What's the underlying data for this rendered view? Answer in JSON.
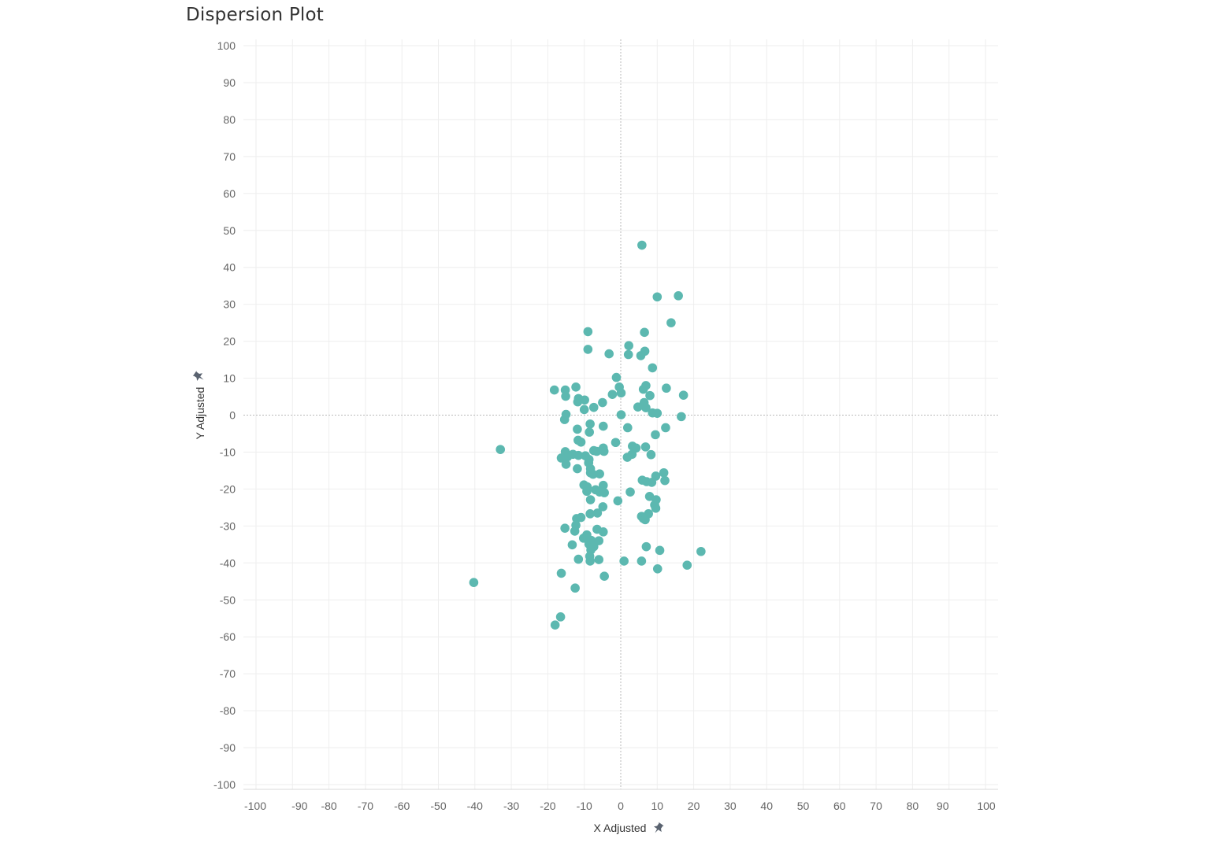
{
  "chart_data": {
    "type": "scatter",
    "title": "Dispersion Plot",
    "xlabel": "X Adjusted",
    "ylabel": "Y Adjusted",
    "xlim": [
      -100,
      100
    ],
    "ylim": [
      -100,
      100
    ],
    "x_ticks": [
      -100,
      -90,
      -80,
      -70,
      -60,
      -50,
      -40,
      -30,
      -20,
      -10,
      0,
      10,
      20,
      30,
      40,
      50,
      60,
      70,
      80,
      90,
      100
    ],
    "y_ticks": [
      100,
      90,
      80,
      70,
      60,
      50,
      40,
      30,
      20,
      10,
      0,
      -10,
      -20,
      -30,
      -40,
      -50,
      -60,
      -70,
      -80,
      -90,
      -100
    ],
    "grid": true,
    "zero_lines": true,
    "marker_color": "#5cb8b0",
    "axis_pin_icons": [
      "pin-icon",
      "pin-icon"
    ],
    "points": [
      {
        "x": 5.8,
        "y": 46
      },
      {
        "x": 10,
        "y": 32
      },
      {
        "x": 15.8,
        "y": 32.3
      },
      {
        "x": 13.8,
        "y": 25
      },
      {
        "x": -9,
        "y": 22.6
      },
      {
        "x": 6.5,
        "y": 22.4
      },
      {
        "x": -9,
        "y": 17.8
      },
      {
        "x": 2.2,
        "y": 18.8
      },
      {
        "x": 6.6,
        "y": 17.3
      },
      {
        "x": -3.2,
        "y": 16.6
      },
      {
        "x": 2.1,
        "y": 16.4
      },
      {
        "x": 5.5,
        "y": 16.1
      },
      {
        "x": 8.7,
        "y": 12.8
      },
      {
        "x": -1.2,
        "y": 10.2
      },
      {
        "x": 6.9,
        "y": 8
      },
      {
        "x": 12.5,
        "y": 7.3
      },
      {
        "x": -18.2,
        "y": 6.8
      },
      {
        "x": -15.2,
        "y": 6.8
      },
      {
        "x": -12.3,
        "y": 7.6
      },
      {
        "x": -0.4,
        "y": 7.6
      },
      {
        "x": 6.2,
        "y": 7
      },
      {
        "x": 0.1,
        "y": 6
      },
      {
        "x": -2.3,
        "y": 5.6
      },
      {
        "x": 17.2,
        "y": 5.4
      },
      {
        "x": 8,
        "y": 5.3
      },
      {
        "x": -15.1,
        "y": 5.1
      },
      {
        "x": -11.6,
        "y": 4.5
      },
      {
        "x": -9.9,
        "y": 4.1
      },
      {
        "x": -11.8,
        "y": 3.6
      },
      {
        "x": -5,
        "y": 3.4
      },
      {
        "x": 6.4,
        "y": 3.4
      },
      {
        "x": 4.7,
        "y": 2.2
      },
      {
        "x": -7.4,
        "y": 2.1
      },
      {
        "x": 6.9,
        "y": 2
      },
      {
        "x": -10,
        "y": 1.5
      },
      {
        "x": 8.7,
        "y": 0.6
      },
      {
        "x": 10,
        "y": 0.5
      },
      {
        "x": 0.1,
        "y": 0.1
      },
      {
        "x": -15,
        "y": 0.2
      },
      {
        "x": 16.6,
        "y": -0.4
      },
      {
        "x": -15.4,
        "y": -1.2
      },
      {
        "x": -8.4,
        "y": -2.4
      },
      {
        "x": -4.8,
        "y": -3
      },
      {
        "x": 1.9,
        "y": -3.4
      },
      {
        "x": 12.3,
        "y": -3.4
      },
      {
        "x": -11.9,
        "y": -3.8
      },
      {
        "x": -8.6,
        "y": -4.6
      },
      {
        "x": 9.5,
        "y": -5.3
      },
      {
        "x": -11.7,
        "y": -6.8
      },
      {
        "x": -10.9,
        "y": -7.3
      },
      {
        "x": -1.4,
        "y": -7.4
      },
      {
        "x": 3.2,
        "y": -8.4
      },
      {
        "x": 6.8,
        "y": -8.6
      },
      {
        "x": 4.2,
        "y": -8.9
      },
      {
        "x": -4.8,
        "y": -8.9
      },
      {
        "x": -33,
        "y": -9.3
      },
      {
        "x": -7.4,
        "y": -9.6
      },
      {
        "x": -15.2,
        "y": -9.9
      },
      {
        "x": -4.6,
        "y": -9.8
      },
      {
        "x": -6.6,
        "y": -9.8
      },
      {
        "x": -13.1,
        "y": -10.6
      },
      {
        "x": 3.1,
        "y": -10.6
      },
      {
        "x": 8.3,
        "y": -10.7
      },
      {
        "x": -11.6,
        "y": -10.9
      },
      {
        "x": -9.7,
        "y": -11
      },
      {
        "x": -14.6,
        "y": -11.3
      },
      {
        "x": 1.8,
        "y": -11.4
      },
      {
        "x": -16.3,
        "y": -11.6
      },
      {
        "x": -8.7,
        "y": -12
      },
      {
        "x": -8.8,
        "y": -12.9
      },
      {
        "x": -15,
        "y": -13.3
      },
      {
        "x": -11.9,
        "y": -14.5
      },
      {
        "x": -8.3,
        "y": -14.5
      },
      {
        "x": -8.3,
        "y": -15.6
      },
      {
        "x": 11.8,
        "y": -15.6
      },
      {
        "x": -5.8,
        "y": -15.9
      },
      {
        "x": -7.6,
        "y": -16
      },
      {
        "x": 9.6,
        "y": -16.5
      },
      {
        "x": 5.9,
        "y": -17.6
      },
      {
        "x": 12.1,
        "y": -17.7
      },
      {
        "x": 7.1,
        "y": -18
      },
      {
        "x": 8.5,
        "y": -18.2
      },
      {
        "x": -10.1,
        "y": -18.9
      },
      {
        "x": -4.8,
        "y": -19
      },
      {
        "x": -9.2,
        "y": -19.4
      },
      {
        "x": -6.9,
        "y": -20.2
      },
      {
        "x": 2.6,
        "y": -20.8
      },
      {
        "x": -5.8,
        "y": -20.8
      },
      {
        "x": -9.3,
        "y": -20.6
      },
      {
        "x": -4.5,
        "y": -21
      },
      {
        "x": 7.9,
        "y": -22
      },
      {
        "x": -8.3,
        "y": -22.9
      },
      {
        "x": 9.7,
        "y": -22.9
      },
      {
        "x": -0.8,
        "y": -23.2
      },
      {
        "x": 9.3,
        "y": -24.3
      },
      {
        "x": -4.9,
        "y": -24.8
      },
      {
        "x": 9.6,
        "y": -25.2
      },
      {
        "x": 7.6,
        "y": -26.7
      },
      {
        "x": -6.4,
        "y": -26.5
      },
      {
        "x": -8.4,
        "y": -26.7
      },
      {
        "x": 5.7,
        "y": -27.4
      },
      {
        "x": 6.2,
        "y": -28
      },
      {
        "x": -12.1,
        "y": -28
      },
      {
        "x": -10.9,
        "y": -27.7
      },
      {
        "x": 6.7,
        "y": -28.3
      },
      {
        "x": -12.3,
        "y": -29.8
      },
      {
        "x": -15.3,
        "y": -30.6
      },
      {
        "x": -6.5,
        "y": -30.9
      },
      {
        "x": -12.6,
        "y": -31.4
      },
      {
        "x": -4.8,
        "y": -31.6
      },
      {
        "x": -9.3,
        "y": -32.4
      },
      {
        "x": -10.2,
        "y": -33.3
      },
      {
        "x": -8.1,
        "y": -33.9
      },
      {
        "x": -6,
        "y": -34
      },
      {
        "x": -8.7,
        "y": -34.9
      },
      {
        "x": -13.3,
        "y": -35.1
      },
      {
        "x": -7.4,
        "y": -35.6
      },
      {
        "x": 7,
        "y": -35.6
      },
      {
        "x": -8.2,
        "y": -36.5
      },
      {
        "x": 10.7,
        "y": -36.6
      },
      {
        "x": 22,
        "y": -36.9
      },
      {
        "x": -8.5,
        "y": -38.2
      },
      {
        "x": -11.6,
        "y": -39
      },
      {
        "x": -6,
        "y": -39.1
      },
      {
        "x": -8.4,
        "y": -39.5
      },
      {
        "x": 0.9,
        "y": -39.5
      },
      {
        "x": 5.7,
        "y": -39.5
      },
      {
        "x": 18.2,
        "y": -40.6
      },
      {
        "x": 10.1,
        "y": -41.6
      },
      {
        "x": -16.3,
        "y": -42.8
      },
      {
        "x": -4.5,
        "y": -43.6
      },
      {
        "x": -40.3,
        "y": -45.3
      },
      {
        "x": -12.5,
        "y": -46.8
      },
      {
        "x": -16.5,
        "y": -54.6
      },
      {
        "x": -18,
        "y": -56.8
      }
    ]
  }
}
